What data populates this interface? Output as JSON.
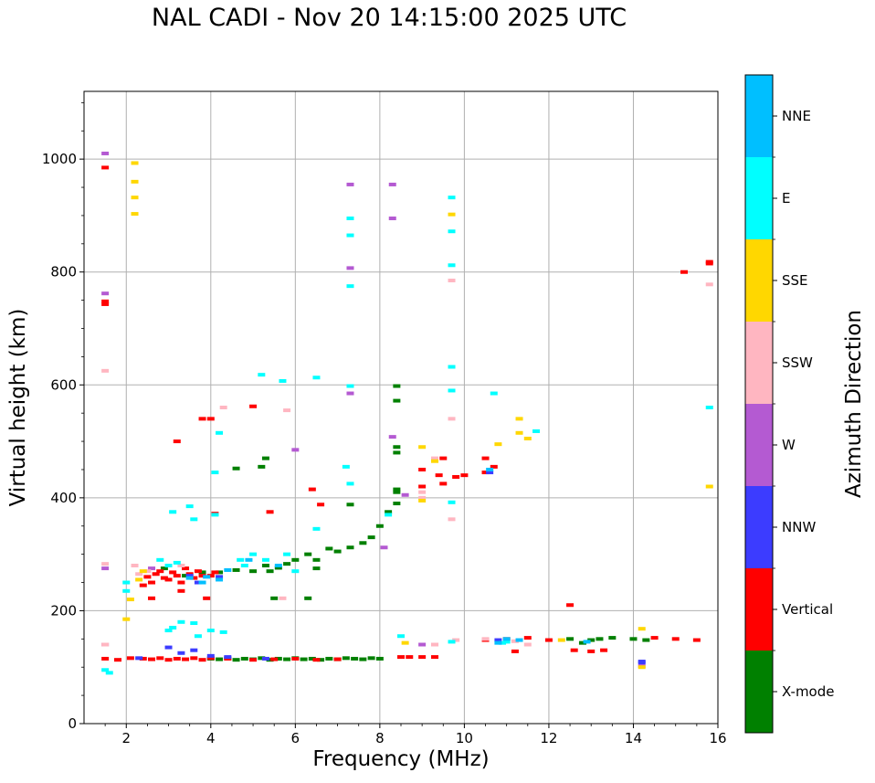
{
  "chart_data": {
    "type": "scatter",
    "title": "NAL CADI - Nov 20 14:15:00 2025 UTC",
    "xlabel": "Frequency (MHz)",
    "ylabel": "Virtual height (km)",
    "xlim": [
      1,
      16
    ],
    "ylim": [
      0,
      1120
    ],
    "xticks": [
      2,
      4,
      6,
      8,
      10,
      12,
      14,
      16
    ],
    "yticks": [
      0,
      200,
      400,
      600,
      800,
      1000
    ],
    "grid": true,
    "colorbar": {
      "label": "Azimuth Direction",
      "categories": [
        {
          "name": "X-mode",
          "color": "#008000"
        },
        {
          "name": "Vertical",
          "color": "#ff0000"
        },
        {
          "name": "NNW",
          "color": "#3c3cff"
        },
        {
          "name": "W",
          "color": "#b45ad2"
        },
        {
          "name": "SSW",
          "color": "#ffb6c1"
        },
        {
          "name": "SSE",
          "color": "#ffd700"
        },
        {
          "name": "E",
          "color": "#00ffff"
        },
        {
          "name": "NNE",
          "color": "#00bfff"
        }
      ]
    },
    "series": [
      {
        "name": "X-mode",
        "points": [
          [
            4.0,
            115
          ],
          [
            4.2,
            114
          ],
          [
            4.4,
            116
          ],
          [
            4.6,
            113
          ],
          [
            4.8,
            115
          ],
          [
            5.0,
            114
          ],
          [
            5.2,
            116
          ],
          [
            5.4,
            113
          ],
          [
            5.6,
            115
          ],
          [
            5.8,
            114
          ],
          [
            6.0,
            116
          ],
          [
            6.2,
            114
          ],
          [
            6.4,
            115
          ],
          [
            6.6,
            113
          ],
          [
            6.8,
            115
          ],
          [
            7.0,
            114
          ],
          [
            7.2,
            116
          ],
          [
            7.4,
            115
          ],
          [
            7.6,
            114
          ],
          [
            7.8,
            116
          ],
          [
            8.0,
            115
          ],
          [
            4.2,
            268
          ],
          [
            4.6,
            272
          ],
          [
            5.0,
            270
          ],
          [
            5.3,
            280
          ],
          [
            5.6,
            276
          ],
          [
            5.8,
            283
          ],
          [
            6.0,
            290
          ],
          [
            6.3,
            300
          ],
          [
            6.5,
            290
          ],
          [
            6.8,
            310
          ],
          [
            7.0,
            305
          ],
          [
            7.3,
            312
          ],
          [
            7.6,
            320
          ],
          [
            7.8,
            330
          ],
          [
            8.0,
            350
          ],
          [
            8.2,
            375
          ],
          [
            6.5,
            275
          ],
          [
            6.3,
            222
          ],
          [
            5.4,
            270
          ],
          [
            8.4,
            390
          ],
          [
            8.4,
            410
          ],
          [
            8.4,
            415
          ],
          [
            8.4,
            480
          ],
          [
            8.4,
            490
          ],
          [
            8.4,
            572
          ],
          [
            8.4,
            598
          ],
          [
            4.6,
            452
          ],
          [
            5.2,
            455
          ],
          [
            5.3,
            470
          ],
          [
            5.5,
            222
          ],
          [
            7.3,
            388
          ],
          [
            12.5,
            150
          ],
          [
            12.8,
            143
          ],
          [
            13.0,
            148
          ],
          [
            13.2,
            150
          ],
          [
            13.5,
            152
          ],
          [
            14.0,
            150
          ],
          [
            14.3,
            148
          ],
          [
            2.9,
            275
          ],
          [
            3.4,
            262
          ],
          [
            3.8,
            268
          ]
        ]
      },
      {
        "name": "Vertical",
        "points": [
          [
            1.5,
            115
          ],
          [
            1.8,
            113
          ],
          [
            2.1,
            116
          ],
          [
            2.4,
            115
          ],
          [
            2.6,
            114
          ],
          [
            2.8,
            116
          ],
          [
            3.0,
            113
          ],
          [
            3.2,
            115
          ],
          [
            3.4,
            114
          ],
          [
            3.6,
            116
          ],
          [
            3.8,
            113
          ],
          [
            4.0,
            116
          ],
          [
            4.4,
            115
          ],
          [
            5.0,
            113
          ],
          [
            5.5,
            114
          ],
          [
            6.0,
            115
          ],
          [
            6.5,
            113
          ],
          [
            7.0,
            114
          ],
          [
            2.5,
            260
          ],
          [
            2.6,
            250
          ],
          [
            2.7,
            265
          ],
          [
            2.8,
            270
          ],
          [
            2.9,
            258
          ],
          [
            3.0,
            255
          ],
          [
            3.1,
            268
          ],
          [
            3.2,
            262
          ],
          [
            3.3,
            250
          ],
          [
            3.4,
            275
          ],
          [
            3.5,
            265
          ],
          [
            3.6,
            258
          ],
          [
            3.7,
            270
          ],
          [
            3.8,
            262
          ],
          [
            4.0,
            262
          ],
          [
            4.1,
            268
          ],
          [
            2.4,
            245
          ],
          [
            2.6,
            222
          ],
          [
            3.3,
            235
          ],
          [
            3.9,
            222
          ],
          [
            1.5,
            985
          ],
          [
            1.5,
            748
          ],
          [
            1.5,
            743
          ],
          [
            3.8,
            540
          ],
          [
            4.0,
            540
          ],
          [
            3.2,
            500
          ],
          [
            4.1,
            372
          ],
          [
            5.0,
            562
          ],
          [
            5.4,
            375
          ],
          [
            6.4,
            415
          ],
          [
            6.6,
            388
          ],
          [
            8.5,
            118
          ],
          [
            8.7,
            118
          ],
          [
            9.0,
            118
          ],
          [
            9.3,
            118
          ],
          [
            9.4,
            440
          ],
          [
            9.5,
            425
          ],
          [
            9.5,
            470
          ],
          [
            9.0,
            450
          ],
          [
            9.0,
            420
          ],
          [
            9.8,
            437
          ],
          [
            10.0,
            440
          ],
          [
            10.5,
            470
          ],
          [
            10.5,
            445
          ],
          [
            10.7,
            455
          ],
          [
            10.5,
            148
          ],
          [
            11.0,
            150
          ],
          [
            11.2,
            128
          ],
          [
            11.5,
            152
          ],
          [
            12.0,
            148
          ],
          [
            12.5,
            210
          ],
          [
            12.6,
            130
          ],
          [
            13.0,
            128
          ],
          [
            13.3,
            130
          ],
          [
            14.5,
            152
          ],
          [
            15.0,
            150
          ],
          [
            15.5,
            148
          ],
          [
            15.2,
            800
          ],
          [
            15.8,
            815
          ],
          [
            15.8,
            818
          ]
        ]
      },
      {
        "name": "NNW",
        "points": [
          [
            3.0,
            135
          ],
          [
            3.3,
            125
          ],
          [
            3.6,
            130
          ],
          [
            4.0,
            120
          ],
          [
            4.4,
            118
          ],
          [
            5.3,
            115
          ],
          [
            2.3,
            116
          ],
          [
            3.7,
            250
          ],
          [
            4.2,
            260
          ],
          [
            10.6,
            445
          ],
          [
            10.8,
            148
          ],
          [
            14.2,
            108
          ],
          [
            14.2,
            110
          ],
          [
            3.5,
            262
          ]
        ]
      },
      {
        "name": "W",
        "points": [
          [
            1.5,
            1010
          ],
          [
            1.5,
            762
          ],
          [
            7.3,
            955
          ],
          [
            8.3,
            955
          ],
          [
            8.3,
            895
          ],
          [
            7.3,
            807
          ],
          [
            7.3,
            585
          ],
          [
            8.3,
            508
          ],
          [
            6.0,
            485
          ],
          [
            8.1,
            312
          ],
          [
            2.6,
            275
          ],
          [
            9.0,
            140
          ],
          [
            9.3,
            140
          ],
          [
            14.2,
            102
          ],
          [
            1.5,
            140
          ],
          [
            1.5,
            275
          ],
          [
            8.6,
            405
          ]
        ]
      },
      {
        "name": "SSW",
        "points": [
          [
            1.5,
            625
          ],
          [
            1.5,
            283
          ],
          [
            1.5,
            140
          ],
          [
            2.2,
            280
          ],
          [
            2.5,
            270
          ],
          [
            3.3,
            280
          ],
          [
            4.3,
            560
          ],
          [
            5.8,
            555
          ],
          [
            9.0,
            410
          ],
          [
            9.0,
            400
          ],
          [
            9.3,
            470
          ],
          [
            9.7,
            785
          ],
          [
            9.7,
            540
          ],
          [
            9.7,
            362
          ],
          [
            9.3,
            140
          ],
          [
            9.8,
            148
          ],
          [
            10.5,
            150
          ],
          [
            11.2,
            146
          ],
          [
            11.5,
            140
          ],
          [
            15.8,
            778
          ],
          [
            5.7,
            222
          ],
          [
            2.3,
            265
          ]
        ]
      },
      {
        "name": "SSE",
        "points": [
          [
            2.2,
            993
          ],
          [
            2.2,
            960
          ],
          [
            2.2,
            932
          ],
          [
            2.2,
            903
          ],
          [
            2.4,
            270
          ],
          [
            2.3,
            255
          ],
          [
            2.1,
            220
          ],
          [
            2.0,
            185
          ],
          [
            9.0,
            395
          ],
          [
            9.0,
            490
          ],
          [
            9.3,
            465
          ],
          [
            9.7,
            902
          ],
          [
            11.3,
            540
          ],
          [
            11.3,
            515
          ],
          [
            11.5,
            505
          ],
          [
            10.8,
            495
          ],
          [
            12.3,
            148
          ],
          [
            14.2,
            168
          ],
          [
            14.2,
            100
          ],
          [
            15.8,
            420
          ],
          [
            8.6,
            143
          ]
        ]
      },
      {
        "name": "E",
        "points": [
          [
            7.3,
            895
          ],
          [
            7.3,
            865
          ],
          [
            7.3,
            775
          ],
          [
            7.3,
            598
          ],
          [
            9.7,
            932
          ],
          [
            9.7,
            872
          ],
          [
            9.7,
            812
          ],
          [
            9.7,
            632
          ],
          [
            9.7,
            590
          ],
          [
            9.7,
            392
          ],
          [
            5.2,
            618
          ],
          [
            5.7,
            607
          ],
          [
            6.5,
            613
          ],
          [
            4.2,
            515
          ],
          [
            4.1,
            445
          ],
          [
            4.1,
            370
          ],
          [
            3.6,
            362
          ],
          [
            3.1,
            375
          ],
          [
            3.5,
            385
          ],
          [
            3.1,
            170
          ],
          [
            3.3,
            180
          ],
          [
            3.6,
            178
          ],
          [
            3.0,
            165
          ],
          [
            4.0,
            165
          ],
          [
            4.3,
            162
          ],
          [
            3.7,
            155
          ],
          [
            1.5,
            95
          ],
          [
            1.6,
            90
          ],
          [
            2.0,
            250
          ],
          [
            2.0,
            235
          ],
          [
            2.8,
            290
          ],
          [
            3.0,
            280
          ],
          [
            3.2,
            285
          ],
          [
            4.7,
            290
          ],
          [
            5.0,
            300
          ],
          [
            5.3,
            290
          ],
          [
            5.8,
            300
          ],
          [
            6.5,
            345
          ],
          [
            7.2,
            455
          ],
          [
            7.3,
            425
          ],
          [
            8.2,
            370
          ],
          [
            10.7,
            585
          ],
          [
            11.7,
            518
          ],
          [
            10.9,
            143
          ],
          [
            11.0,
            145
          ],
          [
            15.8,
            560
          ],
          [
            8.5,
            155
          ],
          [
            9.7,
            145
          ],
          [
            6.0,
            270
          ],
          [
            4.8,
            280
          ]
        ]
      },
      {
        "name": "NNE",
        "points": [
          [
            3.8,
            250
          ],
          [
            3.9,
            260
          ],
          [
            4.4,
            272
          ],
          [
            5.6,
            280
          ],
          [
            4.2,
            255
          ],
          [
            3.5,
            258
          ],
          [
            10.6,
            450
          ],
          [
            10.8,
            143
          ],
          [
            11.0,
            150
          ],
          [
            11.3,
            148
          ],
          [
            12.9,
            145
          ],
          [
            4.9,
            290
          ]
        ]
      }
    ]
  }
}
